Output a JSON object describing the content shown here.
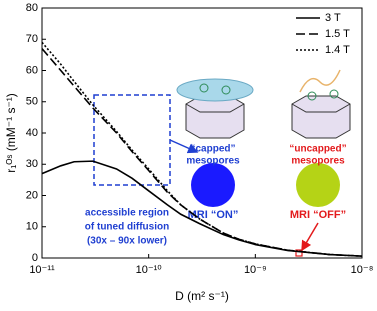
{
  "chart_data": {
    "type": "line",
    "x_label": "D (m² s⁻¹)",
    "y_label": "r₁ᴼˢ (mM⁻¹ s⁻¹)",
    "xscale": "log",
    "xlim": [
      1e-11,
      1e-08
    ],
    "xticks": [
      {
        "value": 1e-11,
        "label": "10⁻¹¹"
      },
      {
        "value": 1e-10,
        "label": "10⁻¹⁰"
      },
      {
        "value": 1e-09,
        "label": "10⁻⁹"
      },
      {
        "value": 1e-08,
        "label": "10⁻⁸"
      }
    ],
    "ylim": [
      0,
      80
    ],
    "yticks": [
      0,
      10,
      20,
      30,
      40,
      50,
      60,
      70,
      80
    ],
    "legend": "upper right",
    "x": [
      1e-11,
      1.5e-11,
      2e-11,
      3e-11,
      5e-11,
      7e-11,
      1e-10,
      1.5e-10,
      2e-10,
      3e-10,
      5e-10,
      7e-10,
      1e-09,
      2e-09,
      5e-09,
      1e-08
    ],
    "series": [
      {
        "name": "3 T",
        "color": "#000000",
        "dash": "solid",
        "values": [
          27,
          29.5,
          30.8,
          31,
          28.5,
          25.5,
          21.5,
          17,
          14,
          11,
          7.5,
          5.8,
          4.3,
          2.4,
          1.1,
          0.6
        ]
      },
      {
        "name": "1.5 T",
        "color": "#000000",
        "dash": "dashed",
        "values": [
          67,
          60,
          55,
          48,
          40,
          34,
          28,
          21,
          17,
          12.5,
          8,
          6,
          4.5,
          2.5,
          1.1,
          0.6
        ]
      },
      {
        "name": "1.4 T",
        "color": "#000000",
        "dash": "dotted",
        "values": [
          69,
          62,
          56.5,
          49,
          40.5,
          34.5,
          28.5,
          21.5,
          17,
          12.5,
          8,
          6,
          4.5,
          2.5,
          1.1,
          0.6
        ]
      }
    ],
    "annotations": [
      "“capped”",
      "mesopores",
      "“uncapped”",
      "mesopores",
      "MRI “ON”",
      "MRI “OFF”",
      "accessible region",
      "of tuned diffusion",
      "(30x – 90x lower)"
    ]
  }
}
